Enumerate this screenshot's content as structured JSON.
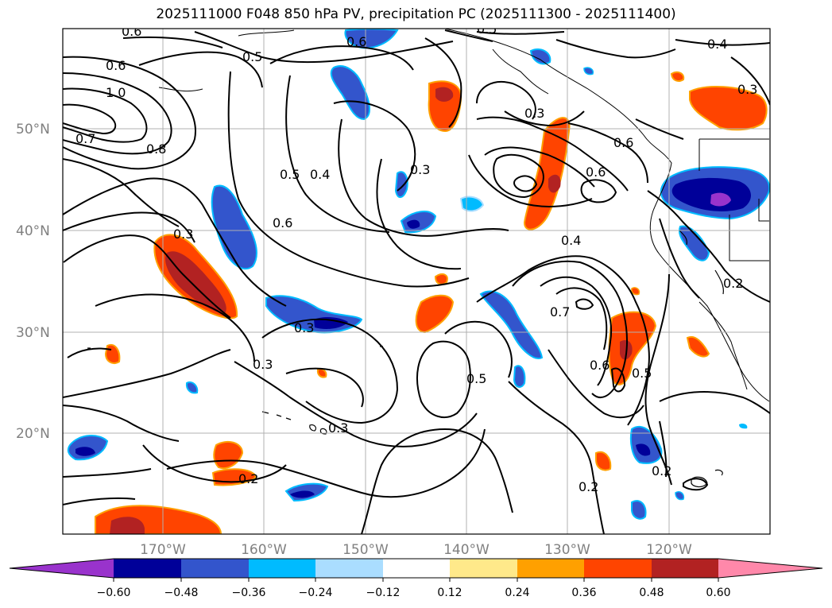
{
  "title": "2025111000 F048 850 hPa PV, precipitation PC (2025111300 - 2025111400)",
  "lat_labels": [
    "50°N",
    "40°N",
    "30°N",
    "20°N"
  ],
  "lon_labels": [
    "170°W",
    "160°W",
    "150°W",
    "140°W",
    "130°W",
    "120°W"
  ],
  "contour_labels": [
    "0.6",
    "0.5",
    "0.6",
    "0.4",
    "0.6",
    "1.0",
    "0.7",
    "0.8",
    "0.3",
    "0.5",
    "0.4",
    "0.3",
    "0.6",
    "0.3",
    "0.6",
    "0.3",
    "0.3",
    "0.3",
    "0.5",
    "0.4",
    "0.7",
    "0.6",
    "0.5",
    "0.6",
    "0.5",
    "0.2",
    "0.2",
    "0.2",
    "0.2",
    "0.3"
  ],
  "colorbar": {
    "ticks": [
      "−0.60",
      "−0.48",
      "−0.36",
      "−0.24",
      "−0.12",
      "0.12",
      "0.24",
      "0.36",
      "0.48",
      "0.60"
    ],
    "colors": [
      "#9933cc",
      "#000099",
      "#3355cc",
      "#00bbff",
      "#aaddff",
      "#ffffff",
      "#ffe98a",
      "#ffa000",
      "#ff4400",
      "#b22222",
      "#ff88aa"
    ]
  }
}
